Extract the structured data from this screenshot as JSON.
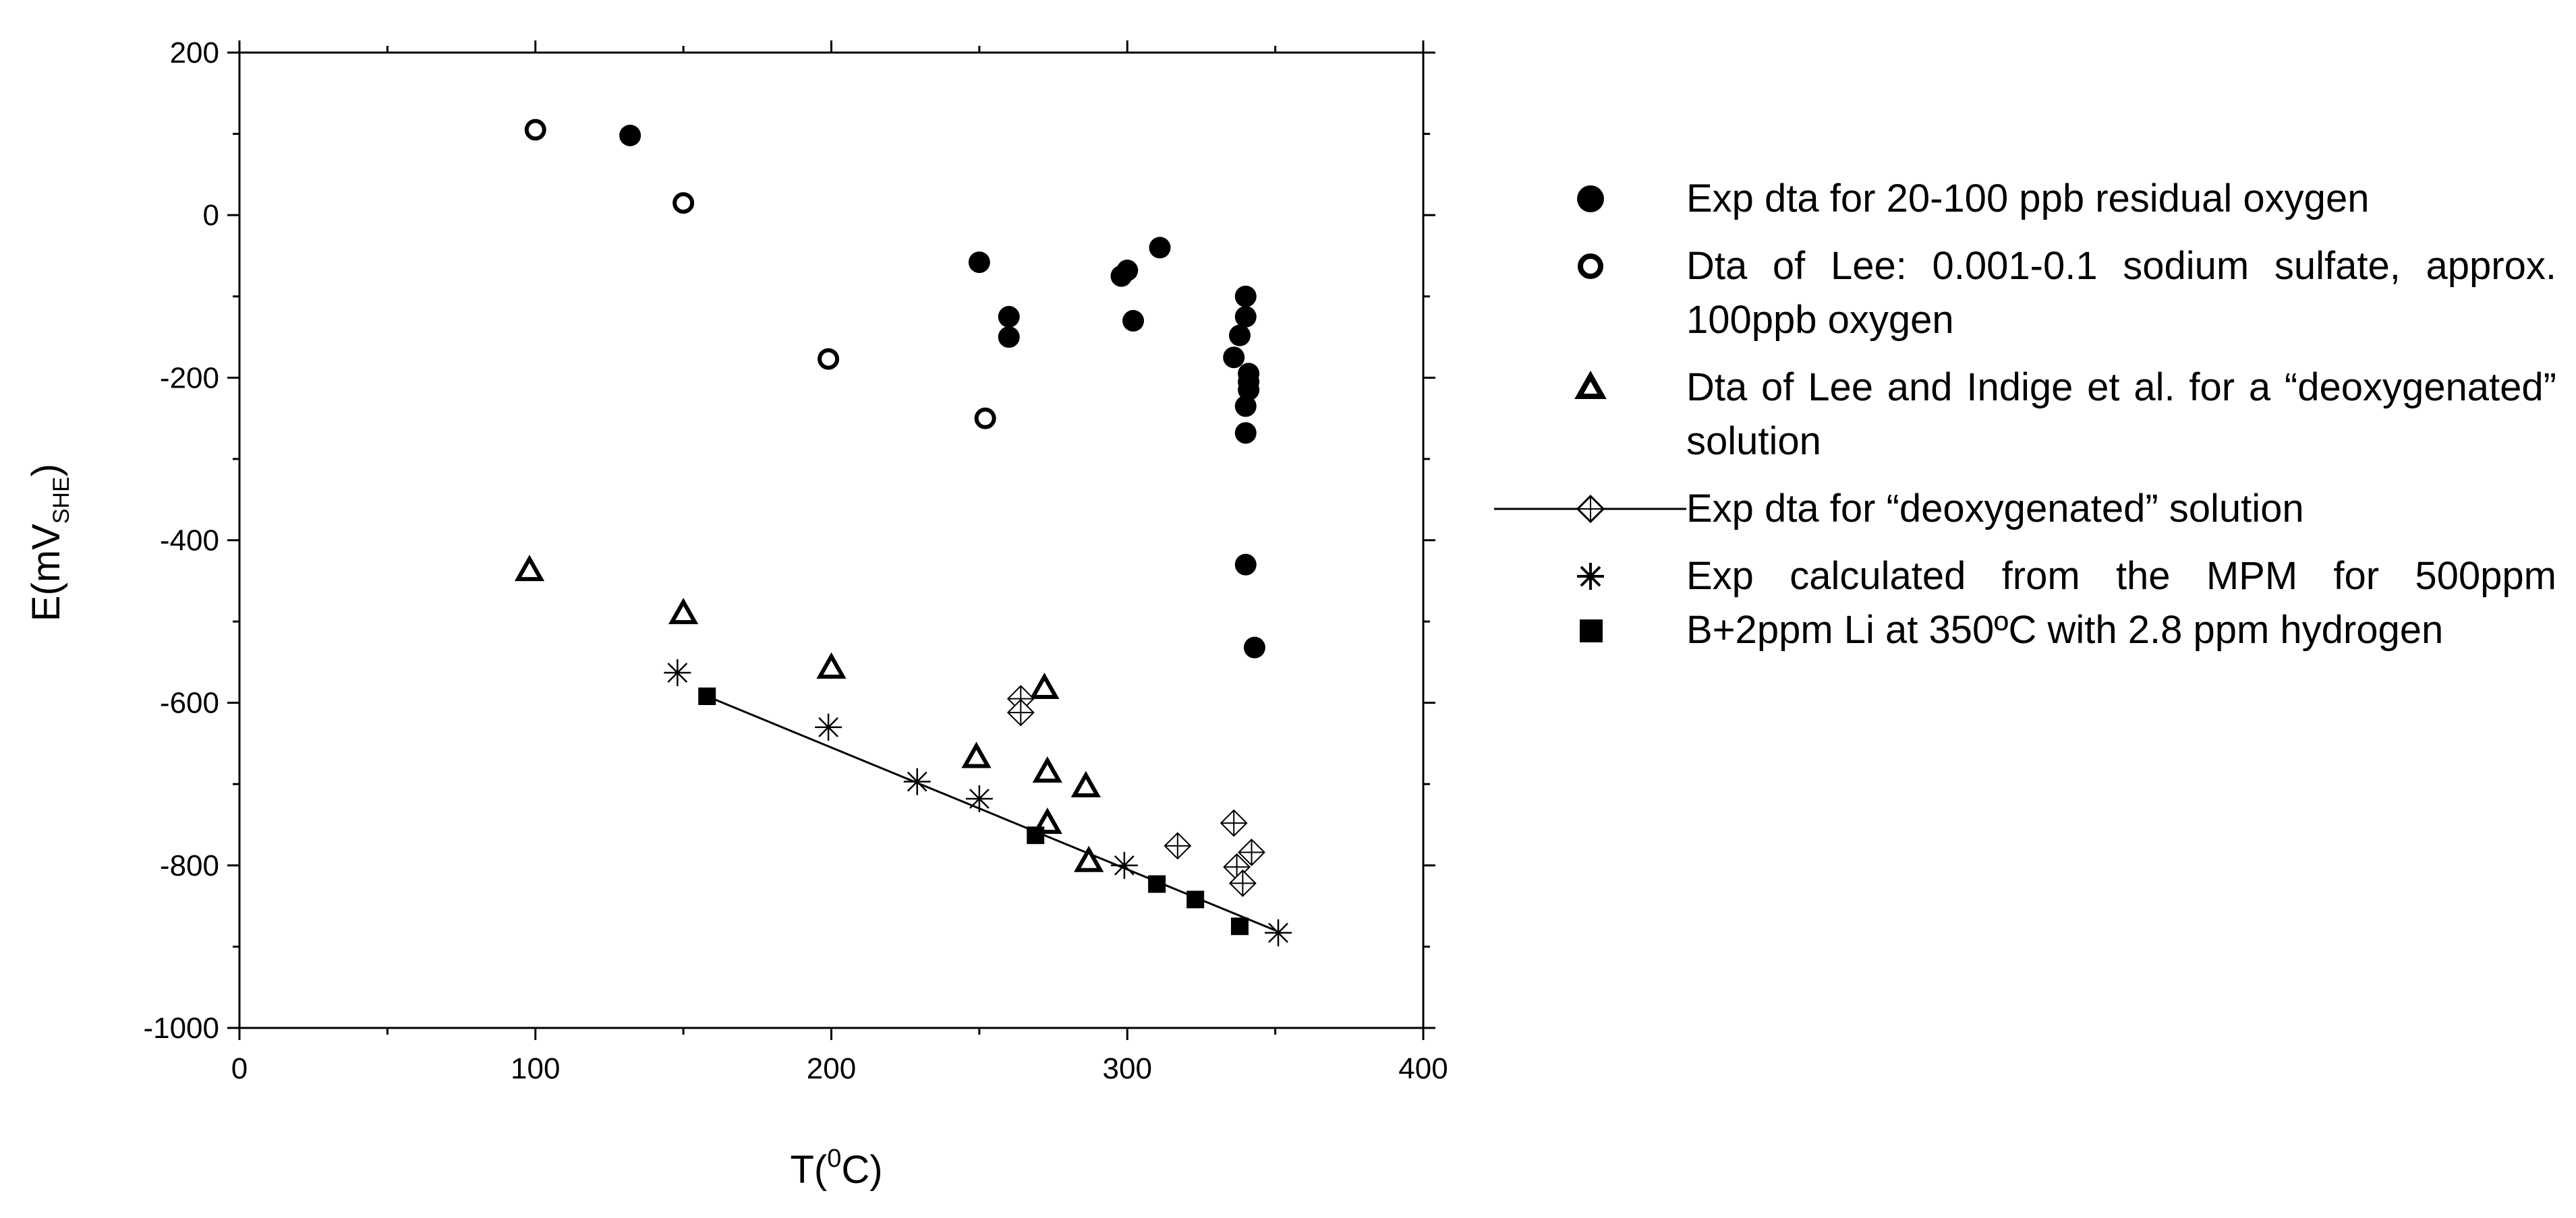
{
  "chart_data": {
    "type": "scatter",
    "xlabel": "T(0C)",
    "xlabel_parts": {
      "base": "T(",
      "sup": "0",
      "rest": "C)"
    },
    "ylabel": "E(mVSHE)",
    "ylabel_parts": {
      "base": "E(mV",
      "sub": "SHE",
      "rest": ")"
    },
    "xlim": [
      0,
      400
    ],
    "ylim": [
      -1000,
      200
    ],
    "xticks": [
      0,
      100,
      200,
      300,
      400
    ],
    "yticks": [
      -1000,
      -800,
      -600,
      -400,
      -200,
      0,
      200
    ],
    "grid": false,
    "legend_position": "right-outside",
    "series": [
      {
        "name": "Exp dta for 20-100 ppb residual oxygen",
        "marker": "filled-circle",
        "points": [
          [
            132,
            98
          ],
          [
            250,
            -58
          ],
          [
            260,
            -125
          ],
          [
            260,
            -150
          ],
          [
            298,
            -75
          ],
          [
            300,
            -68
          ],
          [
            302,
            -130
          ],
          [
            311,
            -40
          ],
          [
            340,
            -100
          ],
          [
            340,
            -125
          ],
          [
            338,
            -148
          ],
          [
            336,
            -175
          ],
          [
            341,
            -195
          ],
          [
            341,
            -205
          ],
          [
            341,
            -215
          ],
          [
            340,
            -235
          ],
          [
            340,
            -268
          ],
          [
            340,
            -430
          ],
          [
            343,
            -532
          ]
        ]
      },
      {
        "name": "Dta of Lee: 0.001-0.1 sodium sulfate, approx. 100ppb oxygen",
        "marker": "open-circle",
        "points": [
          [
            100,
            105
          ],
          [
            150,
            15
          ],
          [
            199,
            -177
          ],
          [
            252,
            -250
          ]
        ]
      },
      {
        "name": "Dta of Lee and Indige et al. for a “deoxygenated” solution",
        "marker": "open-triangle",
        "points": [
          [
            98,
            -437
          ],
          [
            150,
            -490
          ],
          [
            200,
            -557
          ],
          [
            249,
            -667
          ],
          [
            272,
            -582
          ],
          [
            273,
            -685
          ],
          [
            273,
            -748
          ],
          [
            286,
            -703
          ],
          [
            287,
            -795
          ]
        ]
      },
      {
        "name": "Exp dta for “deoxygenated” solution",
        "marker": "diamond-cross",
        "points": [
          [
            264,
            -595
          ],
          [
            264,
            -612
          ],
          [
            317,
            -776
          ],
          [
            336,
            -748
          ],
          [
            337,
            -802
          ],
          [
            339,
            -822
          ],
          [
            342,
            -784
          ]
        ]
      },
      {
        "name": "Exp calculated from the MPM for 500ppm B+2ppm Li at 350ºC with 2.8 ppm hydrogen",
        "marker": "asterisk",
        "points": [
          [
            148,
            -563
          ],
          [
            199,
            -630
          ],
          [
            229,
            -697
          ],
          [
            250,
            -718
          ],
          [
            299,
            -800
          ],
          [
            351,
            -883
          ]
        ]
      },
      {
        "name": "hydrogen-filled-squares",
        "label_hidden": true,
        "marker": "filled-square",
        "points": [
          [
            158,
            -592
          ],
          [
            269,
            -763
          ],
          [
            310,
            -823
          ],
          [
            323,
            -842
          ],
          [
            338,
            -875
          ]
        ]
      }
    ],
    "fit_line": {
      "from": [
        158,
        -592
      ],
      "to": [
        350,
        -880
      ]
    }
  },
  "legend": [
    {
      "marker": "filled-circle",
      "text": "Exp dta for 20-100 ppb residual oxygen"
    },
    {
      "marker": "open-circle",
      "text": "Dta of Lee: 0.001-0.1 sodium sulfate, approx. 100ppb oxygen"
    },
    {
      "marker": "open-triangle",
      "text": "Dta of Lee and Indige et al. for a “deoxygenated” solution"
    },
    {
      "marker": "diamond-cross-line",
      "text": "Exp dta for “deoxygenated” solution"
    },
    {
      "marker": "asterisk",
      "text": "Exp calculated from the MPM for 500ppm B+2ppm Li at 350ºC with 2.8 ppm hydrogen"
    }
  ],
  "legend_notes": {
    "filled-square": ""
  }
}
